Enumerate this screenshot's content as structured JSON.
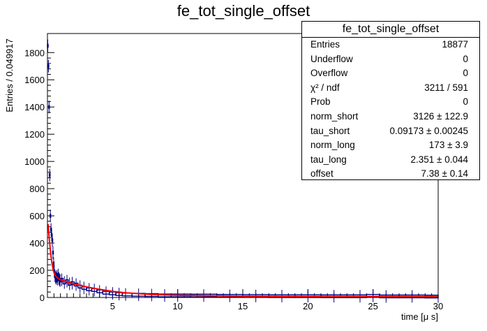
{
  "chart_data": {
    "type": "bar",
    "title": "fe_tot_single_offset",
    "xlabel": "time [μ s]",
    "ylabel": "Entries / 0.049917",
    "xlim": [
      0,
      30
    ],
    "ylim": [
      0,
      1940
    ],
    "x_ticks": [
      5,
      10,
      15,
      20,
      25,
      30
    ],
    "y_ticks": [
      0,
      200,
      400,
      600,
      800,
      1000,
      1200,
      1400,
      1600,
      1800
    ],
    "grid": false,
    "bin_width": 0.049917,
    "histogram": {
      "name": "data",
      "color": "#00007f",
      "x": [
        0.025,
        0.075,
        0.125,
        0.175,
        0.225,
        0.275,
        0.325,
        0.375,
        0.425,
        0.475,
        0.525,
        0.575,
        0.625,
        0.675,
        0.725,
        0.775,
        0.825,
        0.875,
        0.925,
        0.975,
        1.1,
        1.3,
        1.5,
        1.7,
        1.9,
        2.2,
        2.5,
        2.8,
        3.2,
        3.6,
        4.0,
        4.5,
        5.0,
        5.5,
        6.0,
        7.0,
        8.0,
        9.0,
        10.0,
        12.0,
        14.0,
        16.0,
        18.0,
        20.0,
        22.0,
        24.0,
        25.0,
        26.0,
        28.0,
        30.0
      ],
      "values": [
        1850,
        1700,
        1400,
        900,
        600,
        500,
        460,
        420,
        330,
        250,
        190,
        160,
        150,
        140,
        155,
        135,
        165,
        140,
        130,
        125,
        130,
        110,
        120,
        100,
        105,
        95,
        80,
        70,
        60,
        55,
        45,
        35,
        30,
        25,
        22,
        20,
        18,
        15,
        15,
        14,
        12,
        11,
        10,
        10,
        9,
        9,
        12,
        8,
        8,
        7
      ]
    },
    "fit": {
      "name": "fit",
      "color": "#ff0000",
      "x": [
        0.05,
        0.15,
        0.25,
        0.35,
        0.45,
        0.55,
        0.7,
        0.85,
        1.0,
        1.5,
        2.0,
        3.0,
        4.0,
        5.0,
        6.0,
        8.0,
        10.0,
        15.0,
        20.0,
        25.0,
        30.0
      ],
      "values": [
        540,
        420,
        320,
        250,
        200,
        170,
        150,
        140,
        130,
        115,
        100,
        78,
        60,
        45,
        35,
        22,
        16,
        10,
        8,
        7.5,
        7.4
      ]
    }
  },
  "stats": {
    "title": "fe_tot_single_offset",
    "rows": [
      {
        "label": "Entries",
        "value": "18877"
      },
      {
        "label": "Underflow",
        "value": "0"
      },
      {
        "label": "Overflow",
        "value": "0"
      },
      {
        "label": "χ² / ndf",
        "value": "3211 / 591"
      },
      {
        "label": "Prob",
        "value": "0"
      },
      {
        "label": "norm_short",
        "value": "3126 ± 122.9"
      },
      {
        "label": "tau_short",
        "value": "0.09173 ± 0.00245"
      },
      {
        "label": "norm_long",
        "value": "173 ± 3.9"
      },
      {
        "label": "tau_long",
        "value": "2.351 ± 0.044"
      },
      {
        "label": "offset",
        "value": "7.38 ± 0.14"
      }
    ]
  }
}
